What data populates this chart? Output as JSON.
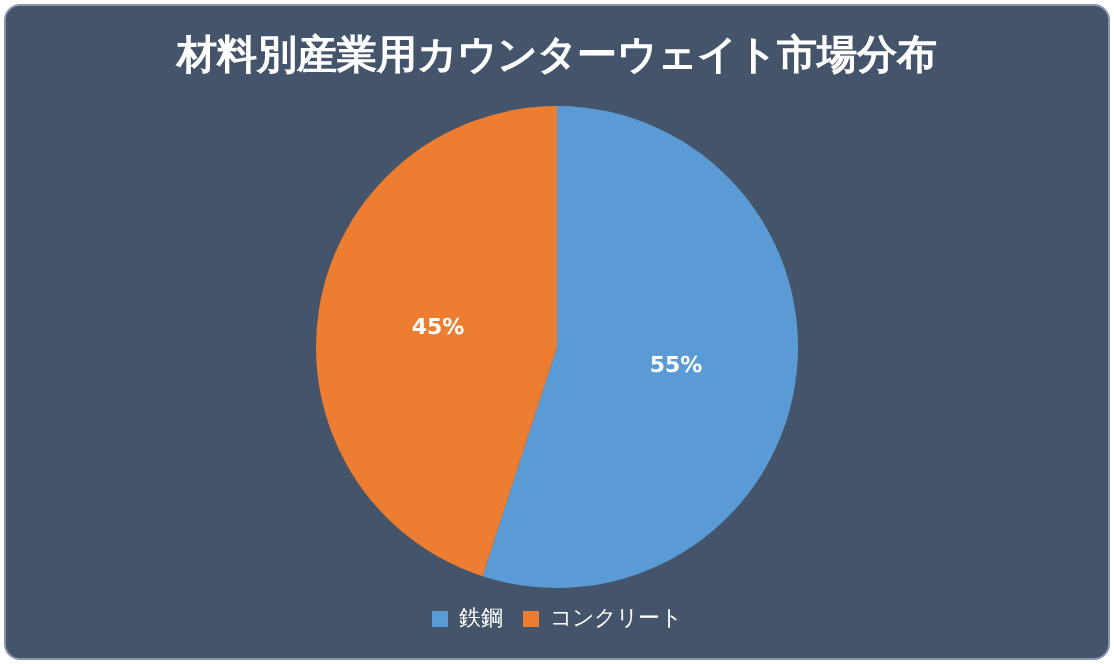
{
  "chart_data": {
    "type": "pie",
    "title": "材料別産業用カウンターウェイト市場分布",
    "categories": [
      "鉄鋼",
      "コンクリート"
    ],
    "values": [
      55,
      45
    ],
    "colors": [
      "#5b9bd5",
      "#ed7d31"
    ],
    "value_labels": [
      "55%",
      "45%"
    ],
    "legend": "bottom"
  }
}
